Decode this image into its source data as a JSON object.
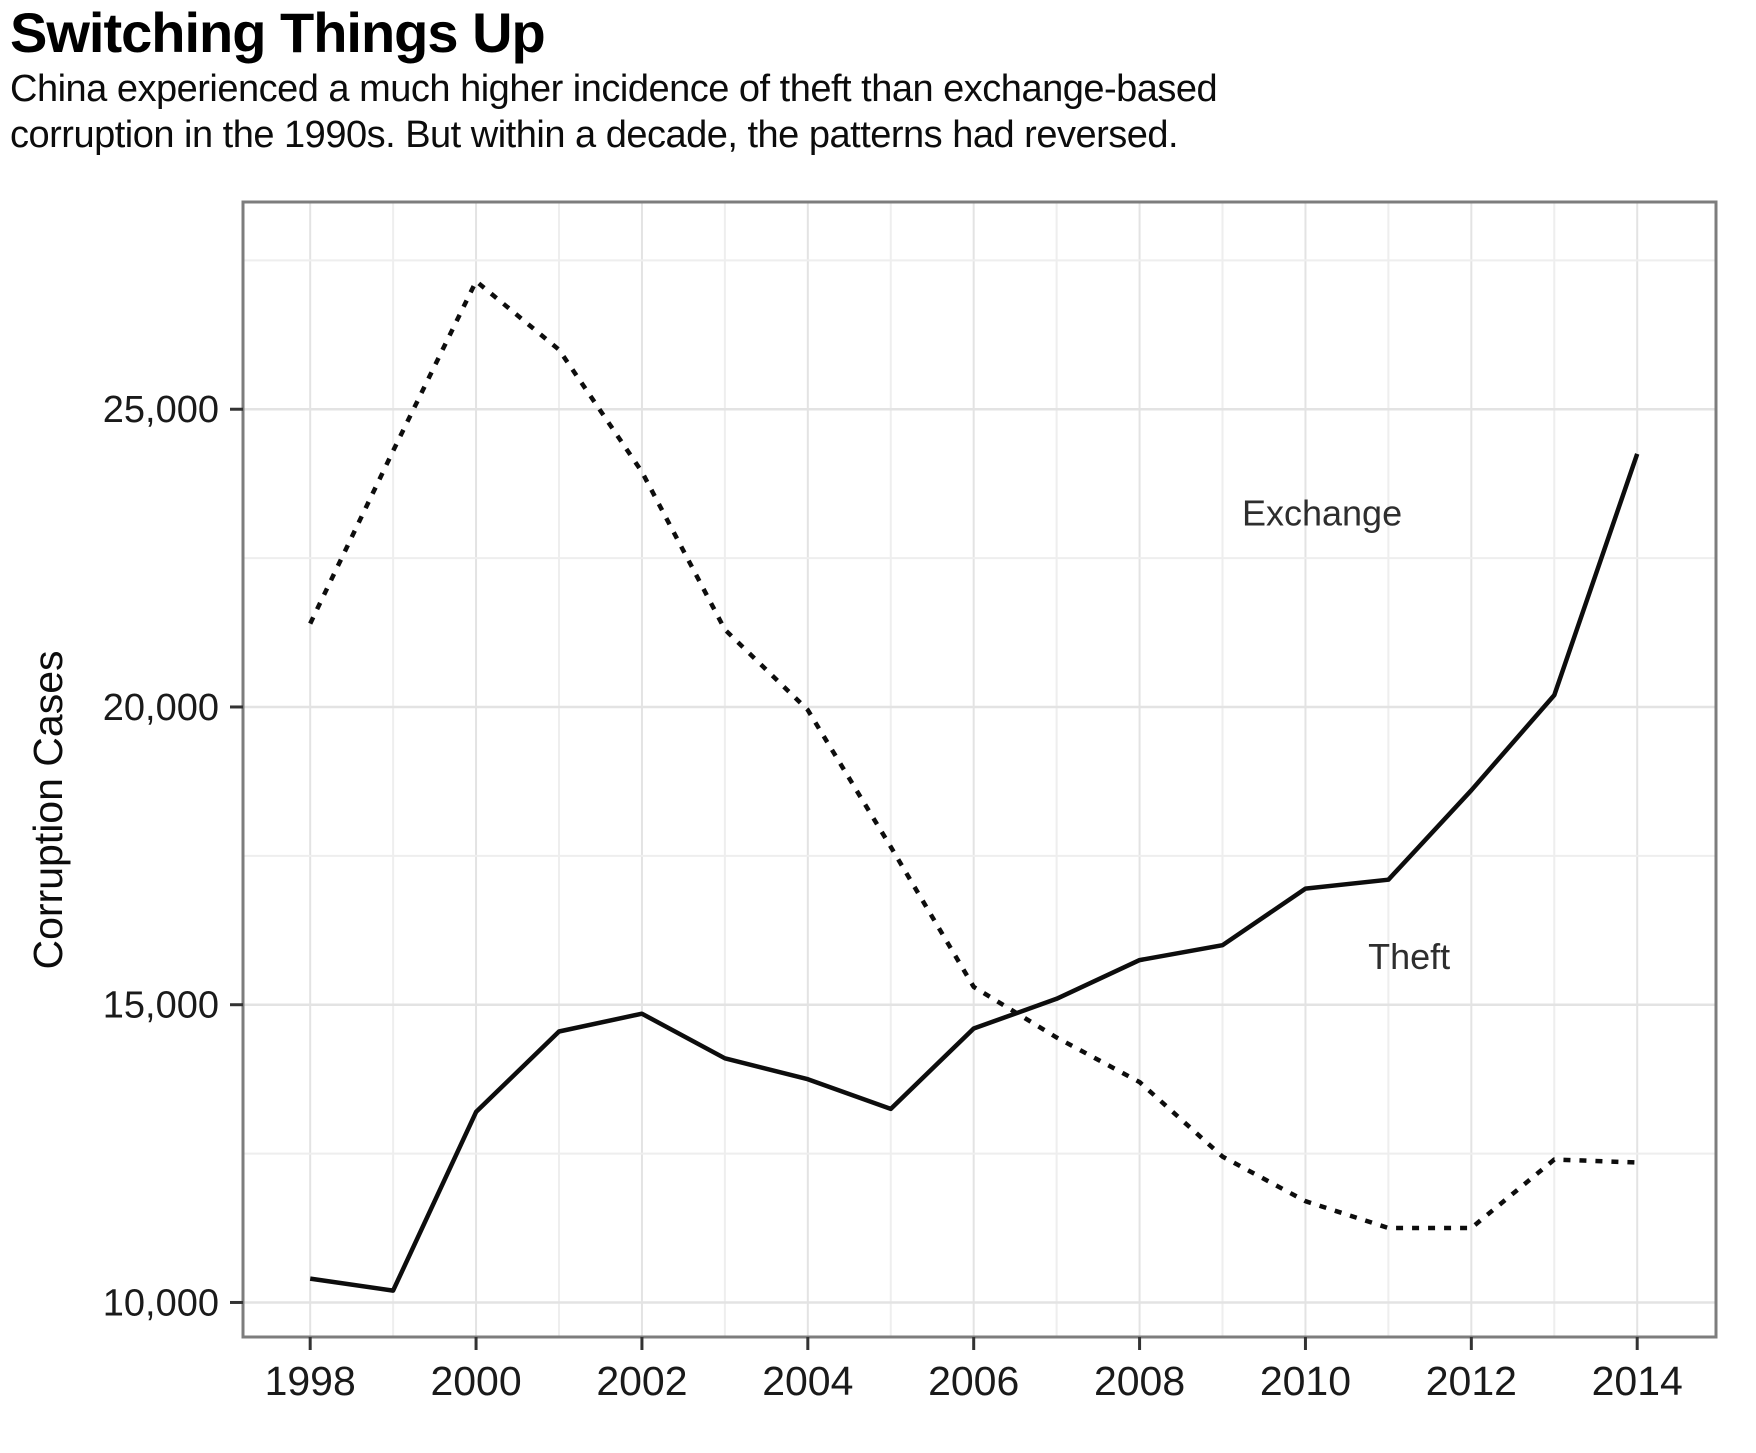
{
  "header": {
    "title": "Switching Things Up",
    "subtitle_line1": "China experienced a much higher incidence of theft than exchange-based",
    "subtitle_line2": "corruption in the 1990s. But within a decade, the patterns had reversed."
  },
  "chart_data": {
    "type": "line",
    "title": "Switching Things Up",
    "xlabel": "",
    "ylabel": "Corruption Cases",
    "x": [
      1998,
      1999,
      2000,
      2001,
      2002,
      2003,
      2004,
      2005,
      2006,
      2007,
      2008,
      2009,
      2010,
      2011,
      2012,
      2013,
      2014
    ],
    "series": [
      {
        "name": "Exchange",
        "line_style": "solid",
        "color": "#0d0d0d",
        "values": [
          10400,
          10200,
          13200,
          14550,
          14850,
          14100,
          13750,
          13250,
          14600,
          15100,
          15750,
          16000,
          16950,
          17100,
          18600,
          20200,
          24250
        ],
        "label": {
          "text": "Exchange",
          "x": 2010.2,
          "y": 23050
        }
      },
      {
        "name": "Theft",
        "line_style": "dashed",
        "color": "#0d0d0d",
        "values": [
          21400,
          24300,
          27150,
          26000,
          23950,
          21300,
          19950,
          17650,
          15300,
          14450,
          13700,
          12450,
          11700,
          11250,
          11250,
          12400,
          12350
        ],
        "label": {
          "text": "Theft",
          "x": 2011.25,
          "y": 15600
        }
      }
    ],
    "xticks": {
      "values": [
        1998,
        2000,
        2002,
        2004,
        2006,
        2008,
        2010,
        2012,
        2014
      ],
      "labels": [
        "1998",
        "2000",
        "2002",
        "2004",
        "2006",
        "2008",
        "2010",
        "2012",
        "2014"
      ]
    },
    "yticks": {
      "values": [
        10000,
        15000,
        20000,
        25000
      ],
      "labels": [
        "10,000",
        "15,000",
        "20,000",
        "25,000"
      ]
    },
    "yminor": [
      12500,
      17500,
      22500,
      27500
    ],
    "xminor_years": [
      1998,
      1999,
      2000,
      2001,
      2002,
      2003,
      2004,
      2005,
      2006,
      2007,
      2008,
      2009,
      2010,
      2011,
      2012,
      2013,
      2014
    ],
    "xlim": [
      1997.19,
      2014.95
    ],
    "ylim": [
      9420,
      28480
    ],
    "grid": true,
    "legend_position": "inline-labels"
  },
  "colors": {
    "background": "#ffffff",
    "grid_major": "#e3e3e3",
    "grid_minor": "#eeeeee",
    "plot_border": "#7d7d7d",
    "tick_mark": "#333333",
    "tick_text": "#1a1a1a",
    "line": "#0d0d0d",
    "series_label_text": "#2e2e2e",
    "text": "#0c0c0c"
  }
}
